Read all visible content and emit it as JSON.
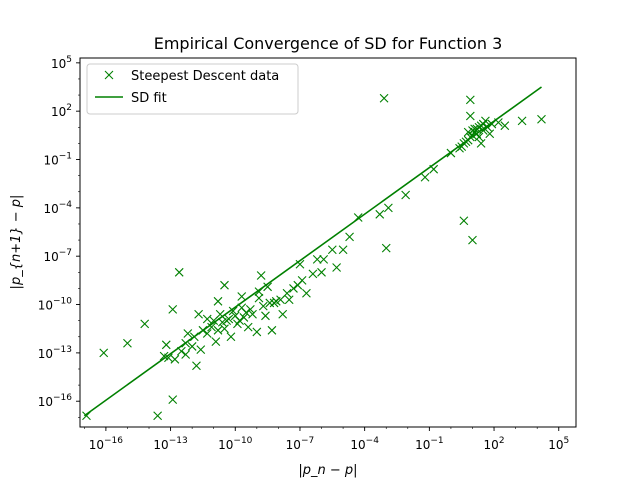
{
  "chart_data": {
    "type": "scatter",
    "title": "Empirical Convergence of SD for Function 3",
    "xlabel": "|p_n − p|",
    "ylabel": "|p_{n+1} − p|",
    "xscale": "log",
    "yscale": "log",
    "xlim_log10": [
      -17.2,
      5.8
    ],
    "ylim_log10": [
      -17.6,
      5.3
    ],
    "x_ticks_log10": [
      -16,
      -13,
      -10,
      -7,
      -4,
      -1,
      2,
      5
    ],
    "y_ticks_log10": [
      -16,
      -13,
      -10,
      -7,
      -4,
      -1,
      2,
      5
    ],
    "grid": false,
    "legend_position": "top-left",
    "legend": {
      "data_label": "Steepest Descent data",
      "fit_label": "SD fit"
    },
    "color": "#008000",
    "fit_line_log10": {
      "x": [
        -17.0,
        4.2
      ],
      "y": [
        -16.9,
        3.5
      ]
    },
    "series": [
      {
        "name": "Steepest Descent data",
        "marker": "x",
        "points_log10": [
          [
            -16.9,
            -16.9
          ],
          [
            -16.1,
            -13.0
          ],
          [
            -14.2,
            -11.2
          ],
          [
            -13.6,
            -16.9
          ],
          [
            -13.2,
            -12.5
          ],
          [
            -13.3,
            -13.2
          ],
          [
            -13.1,
            -13.3
          ],
          [
            -12.8,
            -13.4
          ],
          [
            -12.9,
            -15.9
          ],
          [
            -12.9,
            -10.3
          ],
          [
            -12.5,
            -12.9
          ],
          [
            -12.3,
            -12.4
          ],
          [
            -12.3,
            -13.1
          ],
          [
            -12.2,
            -11.8
          ],
          [
            -12.0,
            -12.6
          ],
          [
            -11.9,
            -12.0
          ],
          [
            -11.8,
            -13.8
          ],
          [
            -11.6,
            -12.8
          ],
          [
            -11.7,
            -10.6
          ],
          [
            -11.5,
            -11.6
          ],
          [
            -11.3,
            -11.8
          ],
          [
            -11.1,
            -11.4
          ],
          [
            -11.0,
            -11.0
          ],
          [
            -10.9,
            -12.3
          ],
          [
            -10.8,
            -11.6
          ],
          [
            -10.7,
            -10.6
          ],
          [
            -10.6,
            -11.1
          ],
          [
            -10.5,
            -11.5
          ],
          [
            -10.4,
            -11.0
          ],
          [
            -10.3,
            -10.9
          ],
          [
            -10.2,
            -12.0
          ],
          [
            -10.1,
            -10.4
          ],
          [
            -10.0,
            -10.7
          ],
          [
            -9.9,
            -11.2
          ],
          [
            -9.8,
            -11.0
          ],
          [
            -9.7,
            -10.2
          ],
          [
            -9.6,
            -10.8
          ],
          [
            -9.5,
            -10.5
          ],
          [
            -9.4,
            -11.4
          ],
          [
            -9.3,
            -10.3
          ],
          [
            -9.2,
            -10.6
          ],
          [
            -9.0,
            -11.7
          ],
          [
            -8.9,
            -9.6
          ],
          [
            -8.7,
            -10.1
          ],
          [
            -8.6,
            -10.7
          ],
          [
            -8.4,
            -9.9
          ],
          [
            -8.3,
            -11.6
          ],
          [
            -8.2,
            -9.9
          ],
          [
            -8.1,
            -9.8
          ],
          [
            -7.9,
            -9.7
          ],
          [
            -7.8,
            -10.6
          ],
          [
            -7.6,
            -9.3
          ],
          [
            -7.5,
            -9.7
          ],
          [
            -7.3,
            -9.0
          ],
          [
            -7.1,
            -8.8
          ],
          [
            -6.9,
            -8.5
          ],
          [
            -6.7,
            -9.3
          ],
          [
            -6.4,
            -8.1
          ],
          [
            -6.2,
            -7.2
          ],
          [
            -5.9,
            -7.2
          ],
          [
            -5.5,
            -6.6
          ],
          [
            -5.3,
            -7.7
          ],
          [
            -5.0,
            -6.6
          ],
          [
            -4.7,
            -5.8
          ],
          [
            -4.3,
            -4.6
          ],
          [
            -3.3,
            -4.4
          ],
          [
            -3.0,
            -6.5
          ],
          [
            -2.9,
            -4.0
          ],
          [
            -2.1,
            -3.2
          ],
          [
            -1.2,
            -2.1
          ],
          [
            -0.8,
            -1.6
          ],
          [
            0.0,
            -0.6
          ],
          [
            0.4,
            -0.3
          ],
          [
            0.5,
            -0.2
          ],
          [
            0.6,
            0.0
          ],
          [
            0.7,
            0.1
          ],
          [
            0.8,
            0.2
          ],
          [
            0.9,
            0.4
          ],
          [
            1.0,
            0.5
          ],
          [
            1.1,
            0.7
          ],
          [
            1.2,
            0.9
          ],
          [
            1.3,
            1.0
          ],
          [
            1.4,
            1.1
          ],
          [
            1.5,
            1.2
          ],
          [
            1.6,
            1.4
          ],
          [
            0.9,
            1.7
          ],
          [
            0.8,
            0.7
          ],
          [
            1.0,
            0.8
          ],
          [
            1.1,
            0.9
          ],
          [
            1.2,
            0.6
          ],
          [
            1.3,
            0.4
          ],
          [
            1.5,
            0.8
          ],
          [
            1.7,
            1.0
          ],
          [
            1.9,
            1.2
          ],
          [
            1.4,
            0.0
          ],
          [
            1.8,
            0.6
          ],
          [
            2.2,
            1.3
          ],
          [
            2.5,
            1.1
          ],
          [
            0.6,
            -4.8
          ],
          [
            1.0,
            -6.0
          ],
          [
            -3.1,
            2.8
          ],
          [
            0.9,
            2.7
          ],
          [
            3.3,
            1.4
          ],
          [
            4.2,
            1.5
          ],
          [
            -8.8,
            -8.2
          ],
          [
            -7.0,
            -7.5
          ],
          [
            -6.0,
            -8.0
          ],
          [
            -10.5,
            -8.8
          ],
          [
            -8.9,
            -9.2
          ],
          [
            -12.6,
            -8.0
          ],
          [
            -15.0,
            -12.4
          ],
          [
            -11.3,
            -10.9
          ],
          [
            -10.8,
            -9.8
          ],
          [
            -9.7,
            -9.5
          ],
          [
            -8.5,
            -8.9
          ]
        ]
      }
    ]
  }
}
